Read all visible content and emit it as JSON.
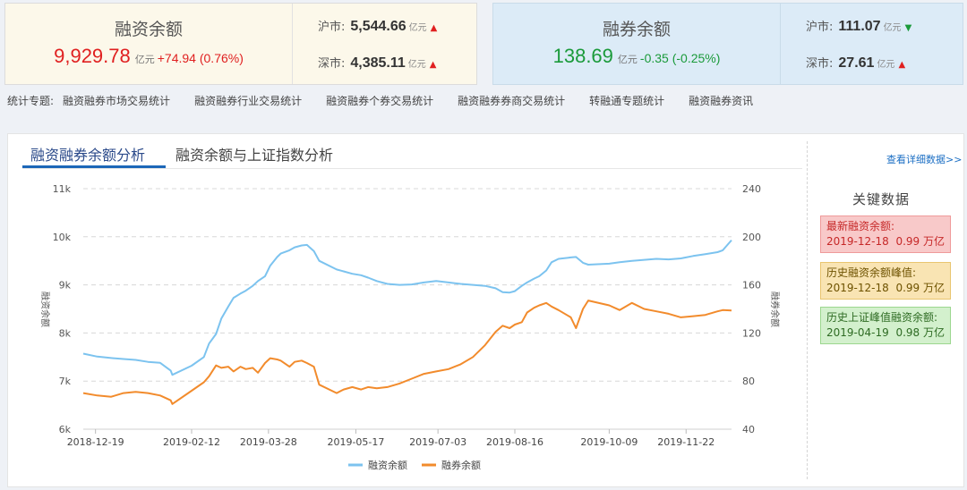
{
  "financing": {
    "title": "融资余额",
    "value": "9,929.78",
    "unit": "亿元",
    "change": "+74.94 (0.76%)",
    "sh_label": "沪市:",
    "sh_value": "5,544.66",
    "sh_unit": "亿元",
    "sh_trend": "up",
    "sz_label": "深市:",
    "sz_value": "4,385.11",
    "sz_unit": "亿元",
    "sz_trend": "up"
  },
  "securities": {
    "title": "融券余额",
    "value": "138.69",
    "unit": "亿元",
    "change": "-0.35 (-0.25%)",
    "sh_label": "沪市:",
    "sh_value": "111.07",
    "sh_unit": "亿元",
    "sh_trend": "down",
    "sz_label": "深市:",
    "sz_value": "27.61",
    "sz_unit": "亿元",
    "sz_trend": "up"
  },
  "nav": {
    "label": "统计专题:",
    "items": [
      "融资融券市场交易统计",
      "融资融券行业交易统计",
      "融资融券个券交易统计",
      "融资融券券商交易统计",
      "转融通专题统计",
      "融资融券资讯"
    ]
  },
  "tabs": [
    "融资融券余额分析",
    "融资余额与上证指数分析"
  ],
  "detail_link": "查看详细数据>>",
  "key_data": {
    "title": "关键数据",
    "items": [
      {
        "label": "最新融资余额:",
        "date": "2019-12-18",
        "value": "0.99 万亿"
      },
      {
        "label": "历史融资余额峰值:",
        "date": "2019-12-18",
        "value": "0.99 万亿"
      },
      {
        "label": "历史上证峰值融资余额:",
        "date": "2019-04-19",
        "value": "0.98 万亿"
      }
    ]
  },
  "colors": {
    "financing_line": "#7cc3ef",
    "securities_line": "#f28b2c",
    "up": "#e02020",
    "down": "#1a9a3a"
  },
  "chart_data": {
    "type": "line",
    "x_ticks": [
      "2018-12-19",
      "2019-02-12",
      "2019-03-28",
      "2019-05-17",
      "2019-07-03",
      "2019-08-16",
      "2019-10-09",
      "2019-11-22"
    ],
    "y_left": {
      "label": "融资余额",
      "ticks": [
        "6k",
        "7k",
        "8k",
        "9k",
        "10k",
        "11k"
      ],
      "range": [
        6000,
        11000
      ]
    },
    "y_right": {
      "label": "融券余额",
      "ticks": [
        "40",
        "80",
        "120",
        "160",
        "200",
        "240"
      ],
      "range": [
        40,
        240
      ]
    },
    "x_range": [
      "2018-12-12",
      "2019-12-18"
    ],
    "legend": [
      "融资余额",
      "融券余额"
    ],
    "legend_position": "bottom",
    "grid": true,
    "series": [
      {
        "name": "融资余额",
        "axis": "left",
        "points": [
          [
            "2018-12-12",
            7570
          ],
          [
            "2018-12-20",
            7510
          ],
          [
            "2018-12-28",
            7480
          ],
          [
            "2019-01-04",
            7460
          ],
          [
            "2019-01-11",
            7440
          ],
          [
            "2019-01-18",
            7400
          ],
          [
            "2019-01-25",
            7380
          ],
          [
            "2019-01-31",
            7220
          ],
          [
            "2019-02-01",
            7130
          ],
          [
            "2019-02-12",
            7320
          ],
          [
            "2019-02-19",
            7500
          ],
          [
            "2019-02-22",
            7780
          ],
          [
            "2019-02-26",
            7980
          ],
          [
            "2019-03-01",
            8300
          ],
          [
            "2019-03-05",
            8550
          ],
          [
            "2019-03-08",
            8730
          ],
          [
            "2019-03-12",
            8820
          ],
          [
            "2019-03-15",
            8880
          ],
          [
            "2019-03-19",
            8980
          ],
          [
            "2019-03-22",
            9080
          ],
          [
            "2019-03-26",
            9180
          ],
          [
            "2019-03-29",
            9400
          ],
          [
            "2019-04-02",
            9580
          ],
          [
            "2019-04-04",
            9650
          ],
          [
            "2019-04-09",
            9720
          ],
          [
            "2019-04-12",
            9780
          ],
          [
            "2019-04-16",
            9820
          ],
          [
            "2019-04-19",
            9830
          ],
          [
            "2019-04-23",
            9700
          ],
          [
            "2019-04-26",
            9500
          ],
          [
            "2019-05-06",
            9320
          ],
          [
            "2019-05-10",
            9280
          ],
          [
            "2019-05-15",
            9230
          ],
          [
            "2019-05-20",
            9200
          ],
          [
            "2019-05-24",
            9150
          ],
          [
            "2019-05-29",
            9080
          ],
          [
            "2019-06-04",
            9020
          ],
          [
            "2019-06-11",
            9000
          ],
          [
            "2019-06-18",
            9010
          ],
          [
            "2019-06-25",
            9050
          ],
          [
            "2019-07-02",
            9080
          ],
          [
            "2019-07-09",
            9050
          ],
          [
            "2019-07-16",
            9020
          ],
          [
            "2019-07-23",
            9000
          ],
          [
            "2019-07-30",
            8980
          ],
          [
            "2019-08-05",
            8930
          ],
          [
            "2019-08-09",
            8850
          ],
          [
            "2019-08-13",
            8840
          ],
          [
            "2019-08-16",
            8870
          ],
          [
            "2019-08-20",
            8980
          ],
          [
            "2019-08-23",
            9050
          ],
          [
            "2019-08-27",
            9130
          ],
          [
            "2019-08-30",
            9180
          ],
          [
            "2019-09-03",
            9300
          ],
          [
            "2019-09-06",
            9470
          ],
          [
            "2019-09-10",
            9540
          ],
          [
            "2019-09-17",
            9570
          ],
          [
            "2019-09-20",
            9580
          ],
          [
            "2019-09-24",
            9460
          ],
          [
            "2019-09-27",
            9420
          ],
          [
            "2019-10-09",
            9440
          ],
          [
            "2019-10-15",
            9470
          ],
          [
            "2019-10-22",
            9500
          ],
          [
            "2019-10-29",
            9520
          ],
          [
            "2019-11-05",
            9540
          ],
          [
            "2019-11-12",
            9530
          ],
          [
            "2019-11-19",
            9550
          ],
          [
            "2019-11-26",
            9600
          ],
          [
            "2019-12-03",
            9640
          ],
          [
            "2019-12-10",
            9680
          ],
          [
            "2019-12-13",
            9720
          ],
          [
            "2019-12-18",
            9930
          ]
        ]
      },
      {
        "name": "融券余额",
        "axis": "right",
        "points": [
          [
            "2018-12-12",
            70
          ],
          [
            "2018-12-20",
            68
          ],
          [
            "2018-12-28",
            67
          ],
          [
            "2019-01-04",
            70
          ],
          [
            "2019-01-11",
            71
          ],
          [
            "2019-01-18",
            70
          ],
          [
            "2019-01-25",
            68
          ],
          [
            "2019-01-31",
            64
          ],
          [
            "2019-02-01",
            61
          ],
          [
            "2019-02-12",
            72
          ],
          [
            "2019-02-19",
            79
          ],
          [
            "2019-02-22",
            84
          ],
          [
            "2019-02-26",
            93
          ],
          [
            "2019-03-01",
            91
          ],
          [
            "2019-03-05",
            92
          ],
          [
            "2019-03-08",
            88
          ],
          [
            "2019-03-12",
            92
          ],
          [
            "2019-03-15",
            90
          ],
          [
            "2019-03-19",
            91
          ],
          [
            "2019-03-22",
            87
          ],
          [
            "2019-03-26",
            95
          ],
          [
            "2019-03-29",
            99
          ],
          [
            "2019-04-02",
            98
          ],
          [
            "2019-04-04",
            97
          ],
          [
            "2019-04-09",
            92
          ],
          [
            "2019-04-12",
            96
          ],
          [
            "2019-04-16",
            97
          ],
          [
            "2019-04-19",
            95
          ],
          [
            "2019-04-23",
            92
          ],
          [
            "2019-04-26",
            77
          ],
          [
            "2019-05-06",
            70
          ],
          [
            "2019-05-10",
            73
          ],
          [
            "2019-05-15",
            75
          ],
          [
            "2019-05-20",
            73
          ],
          [
            "2019-05-24",
            75
          ],
          [
            "2019-05-29",
            74
          ],
          [
            "2019-06-04",
            75
          ],
          [
            "2019-06-11",
            78
          ],
          [
            "2019-06-18",
            82
          ],
          [
            "2019-06-25",
            86
          ],
          [
            "2019-07-02",
            88
          ],
          [
            "2019-07-09",
            90
          ],
          [
            "2019-07-16",
            94
          ],
          [
            "2019-07-23",
            100
          ],
          [
            "2019-07-30",
            110
          ],
          [
            "2019-08-05",
            121
          ],
          [
            "2019-08-09",
            126
          ],
          [
            "2019-08-13",
            124
          ],
          [
            "2019-08-16",
            127
          ],
          [
            "2019-08-20",
            129
          ],
          [
            "2019-08-23",
            137
          ],
          [
            "2019-08-27",
            141
          ],
          [
            "2019-08-30",
            143
          ],
          [
            "2019-09-03",
            145
          ],
          [
            "2019-09-06",
            142
          ],
          [
            "2019-09-10",
            139
          ],
          [
            "2019-09-17",
            133
          ],
          [
            "2019-09-20",
            124
          ],
          [
            "2019-09-24",
            140
          ],
          [
            "2019-09-27",
            147
          ],
          [
            "2019-10-09",
            143
          ],
          [
            "2019-10-15",
            139
          ],
          [
            "2019-10-22",
            145
          ],
          [
            "2019-10-29",
            140
          ],
          [
            "2019-11-05",
            138
          ],
          [
            "2019-11-12",
            136
          ],
          [
            "2019-11-19",
            133
          ],
          [
            "2019-11-26",
            134
          ],
          [
            "2019-12-03",
            135
          ],
          [
            "2019-12-10",
            138
          ],
          [
            "2019-12-13",
            139
          ],
          [
            "2019-12-18",
            138.7
          ]
        ]
      }
    ]
  }
}
